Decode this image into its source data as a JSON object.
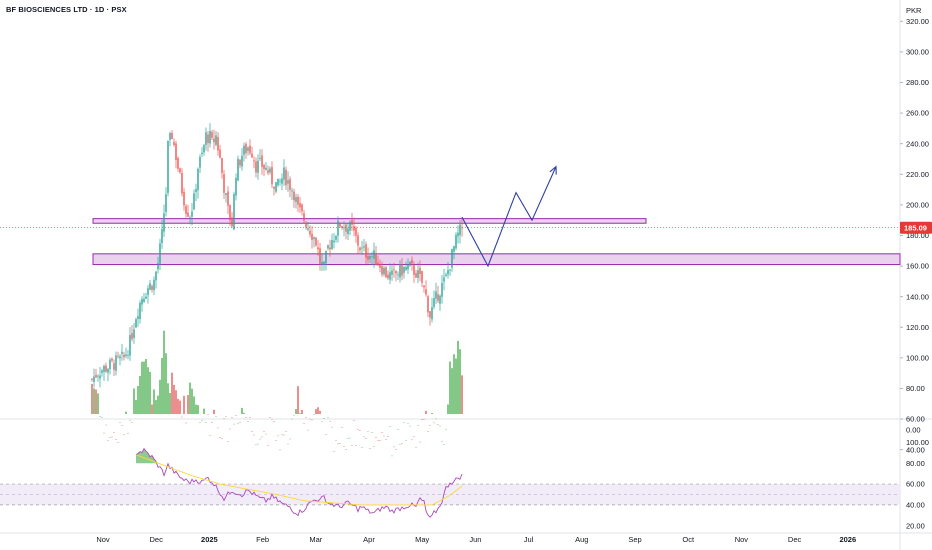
{
  "chart_data": {
    "type": "candlestick",
    "title": "BF BIOSCIENCES LTD · 1D · PSX",
    "currency": "PKR",
    "last_price": "185.09",
    "colors": {
      "up": "#26a69a",
      "down": "#ef5350",
      "up_volume": "#66bb6a",
      "down_volume": "#e57373",
      "zone_fill": "#e1bee7",
      "zone_border": "#9c27b0",
      "projection": "#303f9f",
      "rsi_line": "#ab47bc",
      "rsi_ma": "#fdd835",
      "rsi_band": "#ede7f6",
      "price_label": "#e53935",
      "grid": "#f0f3fa"
    },
    "price_axis": {
      "range": [
        62,
        330
      ],
      "ticks": [
        "320.00",
        "300.00",
        "280.00",
        "260.00",
        "240.00",
        "220.00",
        "200.00",
        "180.00",
        "160.00",
        "140.00",
        "120.00",
        "100.00",
        "80.00",
        "60.00",
        "40.00"
      ]
    },
    "rsi_axis": {
      "range": [
        14,
        108
      ],
      "ticks": [
        "0.00",
        "100.00",
        "80.00",
        "60.00",
        "40.00",
        "20.00"
      ],
      "band": [
        40,
        60
      ]
    },
    "x_labels": [
      {
        "label": "Nov",
        "bold": false
      },
      {
        "label": "Dec",
        "bold": false
      },
      {
        "label": "2025",
        "bold": true
      },
      {
        "label": "Feb",
        "bold": false
      },
      {
        "label": "Mar",
        "bold": false
      },
      {
        "label": "Apr",
        "bold": false
      },
      {
        "label": "May",
        "bold": false
      },
      {
        "label": "Jun",
        "bold": false
      },
      {
        "label": "Jul",
        "bold": false
      },
      {
        "label": "Aug",
        "bold": false
      },
      {
        "label": "Sep",
        "bold": false
      },
      {
        "label": "Oct",
        "bold": false
      },
      {
        "label": "Nov",
        "bold": false
      },
      {
        "label": "Dec",
        "bold": false
      },
      {
        "label": "2026",
        "bold": true
      }
    ],
    "zones": [
      {
        "low": 188,
        "high": 191
      },
      {
        "low": 161,
        "high": 168
      }
    ],
    "close_path": [
      [
        0,
        86
      ],
      [
        3,
        91
      ],
      [
        6,
        93
      ],
      [
        9,
        95
      ],
      [
        12,
        97
      ],
      [
        16,
        100
      ],
      [
        19,
        110
      ],
      [
        22,
        128
      ],
      [
        25,
        140
      ],
      [
        28,
        146
      ],
      [
        31,
        150
      ],
      [
        33,
        162
      ],
      [
        35,
        180
      ],
      [
        36,
        195
      ],
      [
        37,
        208
      ],
      [
        38,
        238
      ],
      [
        40,
        246
      ],
      [
        42,
        232
      ],
      [
        45,
        210
      ],
      [
        47,
        198
      ],
      [
        49,
        194
      ],
      [
        51,
        203
      ],
      [
        53,
        225
      ],
      [
        55,
        232
      ],
      [
        57,
        245
      ],
      [
        59,
        244
      ],
      [
        60,
        240
      ],
      [
        62,
        245
      ],
      [
        64,
        230
      ],
      [
        66,
        212
      ],
      [
        68,
        196
      ],
      [
        70,
        188
      ],
      [
        72,
        222
      ],
      [
        75,
        233
      ],
      [
        78,
        238
      ],
      [
        80,
        235
      ],
      [
        82,
        226
      ],
      [
        85,
        226
      ],
      [
        88,
        222
      ],
      [
        90,
        216
      ],
      [
        93,
        212
      ],
      [
        96,
        220
      ],
      [
        99,
        213
      ],
      [
        101,
        208
      ],
      [
        103,
        197
      ],
      [
        106,
        191
      ],
      [
        109,
        184
      ],
      [
        112,
        176
      ],
      [
        114,
        163
      ],
      [
        116,
        158
      ],
      [
        118,
        172
      ],
      [
        121,
        180
      ],
      [
        124,
        188
      ],
      [
        127,
        186
      ],
      [
        130,
        184
      ],
      [
        133,
        175
      ],
      [
        135,
        170
      ],
      [
        138,
        168
      ],
      [
        141,
        166
      ],
      [
        144,
        161
      ],
      [
        147,
        155
      ],
      [
        150,
        153
      ],
      [
        153,
        156
      ],
      [
        156,
        158
      ],
      [
        159,
        159
      ],
      [
        162,
        156
      ],
      [
        165,
        149
      ],
      [
        167,
        140
      ],
      [
        169,
        128
      ],
      [
        171,
        135
      ],
      [
        173,
        142
      ],
      [
        175,
        147
      ],
      [
        177,
        152
      ],
      [
        179,
        162
      ],
      [
        181,
        172
      ],
      [
        183,
        180
      ],
      [
        185,
        185
      ]
    ],
    "volume_path": [
      [
        0,
        62
      ],
      [
        3,
        55
      ],
      [
        6,
        30
      ],
      [
        9,
        28
      ],
      [
        12,
        26
      ],
      [
        16,
        33
      ],
      [
        19,
        38
      ],
      [
        22,
        58
      ],
      [
        25,
        82
      ],
      [
        28,
        68
      ],
      [
        31,
        50
      ],
      [
        33,
        45
      ],
      [
        35,
        72
      ],
      [
        36,
        93
      ],
      [
        37,
        82
      ],
      [
        38,
        62
      ],
      [
        40,
        60
      ],
      [
        42,
        55
      ],
      [
        45,
        48
      ],
      [
        47,
        44
      ],
      [
        49,
        62
      ],
      [
        51,
        58
      ],
      [
        53,
        45
      ],
      [
        55,
        40
      ],
      [
        57,
        38
      ],
      [
        59,
        35
      ],
      [
        60,
        44
      ],
      [
        62,
        40
      ],
      [
        64,
        35
      ],
      [
        66,
        30
      ],
      [
        68,
        32
      ],
      [
        70,
        36
      ],
      [
        72,
        40
      ],
      [
        75,
        45
      ],
      [
        78,
        38
      ],
      [
        80,
        32
      ],
      [
        82,
        30
      ],
      [
        85,
        28
      ],
      [
        88,
        30
      ],
      [
        90,
        32
      ],
      [
        93,
        26
      ],
      [
        96,
        24
      ],
      [
        99,
        28
      ],
      [
        101,
        32
      ],
      [
        103,
        55
      ],
      [
        106,
        40
      ],
      [
        109,
        38
      ],
      [
        112,
        42
      ],
      [
        114,
        36
      ],
      [
        116,
        30
      ],
      [
        118,
        34
      ],
      [
        121,
        26
      ],
      [
        124,
        24
      ],
      [
        127,
        26
      ],
      [
        130,
        28
      ],
      [
        133,
        30
      ],
      [
        135,
        26
      ],
      [
        138,
        24
      ],
      [
        141,
        26
      ],
      [
        144,
        28
      ],
      [
        147,
        30
      ],
      [
        150,
        22
      ],
      [
        153,
        24
      ],
      [
        156,
        30
      ],
      [
        159,
        26
      ],
      [
        162,
        24
      ],
      [
        165,
        30
      ],
      [
        167,
        36
      ],
      [
        169,
        42
      ],
      [
        171,
        34
      ],
      [
        173,
        30
      ],
      [
        175,
        28
      ],
      [
        177,
        30
      ],
      [
        179,
        70
      ],
      [
        181,
        85
      ],
      [
        183,
        88
      ],
      [
        185,
        62
      ]
    ],
    "rsi_path": [
      [
        22,
        90
      ],
      [
        26,
        92
      ],
      [
        30,
        86
      ],
      [
        33,
        78
      ],
      [
        36,
        70
      ],
      [
        38,
        78
      ],
      [
        40,
        74
      ],
      [
        43,
        68
      ],
      [
        46,
        64
      ],
      [
        49,
        62
      ],
      [
        52,
        64
      ],
      [
        55,
        62
      ],
      [
        58,
        66
      ],
      [
        61,
        60
      ],
      [
        64,
        52
      ],
      [
        66,
        46
      ],
      [
        68,
        50
      ],
      [
        70,
        54
      ],
      [
        72,
        52
      ],
      [
        75,
        50
      ],
      [
        78,
        54
      ],
      [
        81,
        50
      ],
      [
        84,
        46
      ],
      [
        87,
        44
      ],
      [
        90,
        48
      ],
      [
        93,
        44
      ],
      [
        96,
        40
      ],
      [
        99,
        38
      ],
      [
        101,
        34
      ],
      [
        103,
        32
      ],
      [
        106,
        36
      ],
      [
        109,
        42
      ],
      [
        112,
        46
      ],
      [
        114,
        44
      ],
      [
        116,
        48
      ],
      [
        118,
        42
      ],
      [
        121,
        40
      ],
      [
        124,
        38
      ],
      [
        127,
        42
      ],
      [
        130,
        40
      ],
      [
        133,
        36
      ],
      [
        135,
        38
      ],
      [
        138,
        34
      ],
      [
        141,
        32
      ],
      [
        144,
        36
      ],
      [
        147,
        38
      ],
      [
        150,
        34
      ],
      [
        153,
        36
      ],
      [
        156,
        38
      ],
      [
        159,
        40
      ],
      [
        162,
        38
      ],
      [
        164,
        46
      ],
      [
        166,
        42
      ],
      [
        167,
        34
      ],
      [
        169,
        26
      ],
      [
        171,
        32
      ],
      [
        173,
        36
      ],
      [
        175,
        44
      ],
      [
        177,
        56
      ],
      [
        179,
        62
      ],
      [
        181,
        62
      ],
      [
        183,
        66
      ],
      [
        185,
        68
      ]
    ],
    "rsi_ma_path": [
      [
        22,
        88
      ],
      [
        36,
        78
      ],
      [
        50,
        68
      ],
      [
        64,
        60
      ],
      [
        78,
        55
      ],
      [
        92,
        50
      ],
      [
        106,
        44
      ],
      [
        120,
        42
      ],
      [
        134,
        40
      ],
      [
        148,
        40
      ],
      [
        162,
        40
      ],
      [
        170,
        40
      ],
      [
        178,
        48
      ],
      [
        185,
        58
      ]
    ],
    "projection_path": [
      [
        185,
        192
      ],
      [
        198,
        160
      ],
      [
        212,
        208
      ],
      [
        220,
        190
      ],
      [
        232,
        225
      ]
    ]
  }
}
